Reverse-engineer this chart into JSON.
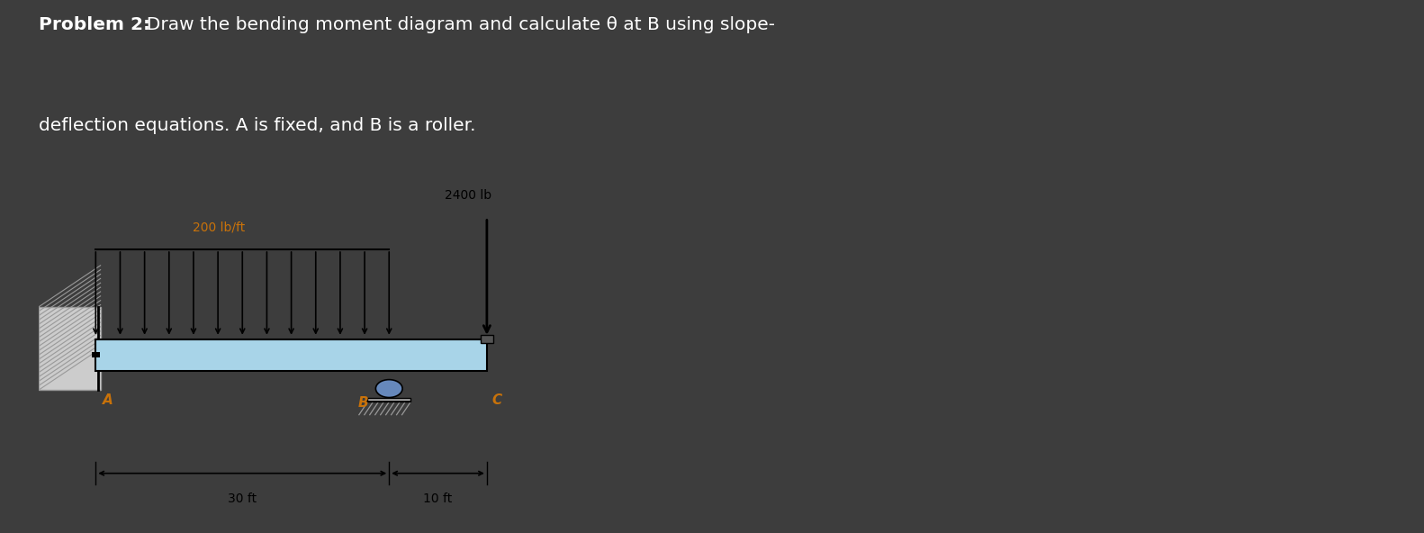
{
  "bg_color": "#3d3d3d",
  "panel_bg": "#ffffff",
  "title_bold": "Problem 2:",
  "title_normal": "  Draw the bending moment diagram and calculate θ at B using slope-",
  "title_line2": "deflection equations. A is fixed, and B is a roller.",
  "title_color": "#ffffff",
  "title_fontsize": 14.5,
  "beam_color": "#a8d4e8",
  "beam_edge_color": "#000000",
  "label_color_orange": "#c8720a",
  "label_color_black": "#000000",
  "distributed_load_label": "200 lb/ft",
  "point_load_label": "2400 lb",
  "dim_AB": "30 ft",
  "dim_BC": "10 ft",
  "label_A": "A",
  "label_B": "B",
  "label_C": "C",
  "n_dist_arrows": 13
}
